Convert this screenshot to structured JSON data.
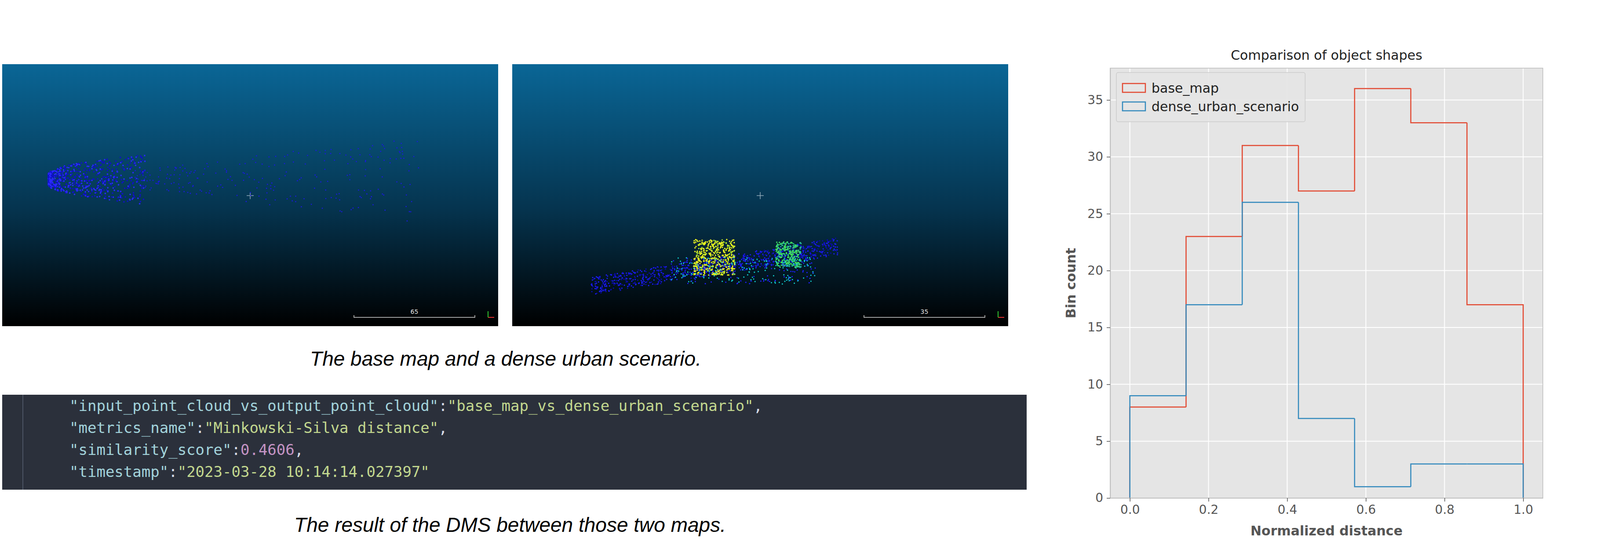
{
  "panels": [
    {
      "scale_label": "65"
    },
    {
      "scale_label": "35"
    }
  ],
  "captions": {
    "images": "The base map and a dense urban scenario.",
    "result": "The result of the DMS between those two maps."
  },
  "code_block": {
    "lines": [
      [
        {
          "text": "\"input_point_cloud_vs_output_point_cloud\"",
          "kind": "key"
        },
        {
          "text": ":",
          "kind": "punct"
        },
        {
          "text": "\"base_map_vs_dense_urban_scenario\"",
          "kind": "string"
        },
        {
          "text": ",",
          "kind": "punct"
        }
      ],
      [
        {
          "text": "\"metrics_name\"",
          "kind": "key"
        },
        {
          "text": ":",
          "kind": "punct"
        },
        {
          "text": "\"Minkowski-Silva distance\"",
          "kind": "string"
        },
        {
          "text": ",",
          "kind": "punct"
        }
      ],
      [
        {
          "text": "\"similarity_score\"",
          "kind": "key"
        },
        {
          "text": ":",
          "kind": "punct"
        },
        {
          "text": "0.4606",
          "kind": "number"
        },
        {
          "text": ",",
          "kind": "punct"
        }
      ],
      [
        {
          "text": "\"timestamp\"",
          "kind": "key"
        },
        {
          "text": ":",
          "kind": "punct"
        },
        {
          "text": "\"2023-03-28 10:14:14.027397\"",
          "kind": "string"
        }
      ]
    ]
  },
  "chart_data": {
    "type": "histogram",
    "title": "Comparison of object shapes",
    "x_label": "Normalized distance",
    "y_label": "Bin count",
    "bins": [
      0,
      0.1429,
      0.2857,
      0.4286,
      0.5714,
      0.7143,
      0.8571,
      1
    ],
    "series": [
      {
        "name": "base_map",
        "color": "#E24A33",
        "values": [
          8,
          23,
          31,
          27,
          36,
          33,
          17
        ]
      },
      {
        "name": "dense_urban_scenario",
        "color": "#348ABD",
        "values": [
          9,
          17,
          26,
          7,
          1,
          3,
          3
        ]
      }
    ],
    "xlim": [
      -0.05,
      1.05
    ],
    "ylim": [
      0,
      37.8
    ],
    "xticks": [
      {
        "value": 0,
        "label": "0.0"
      },
      {
        "value": 0.2,
        "label": "0.2"
      },
      {
        "value": 0.4,
        "label": "0.4"
      },
      {
        "value": 0.6,
        "label": "0.6"
      },
      {
        "value": 0.8,
        "label": "0.8"
      },
      {
        "value": 1,
        "label": "1.0"
      }
    ],
    "yticks": [
      0,
      5,
      10,
      15,
      20,
      25,
      30,
      35
    ],
    "grid": true,
    "legend": "upper left"
  }
}
